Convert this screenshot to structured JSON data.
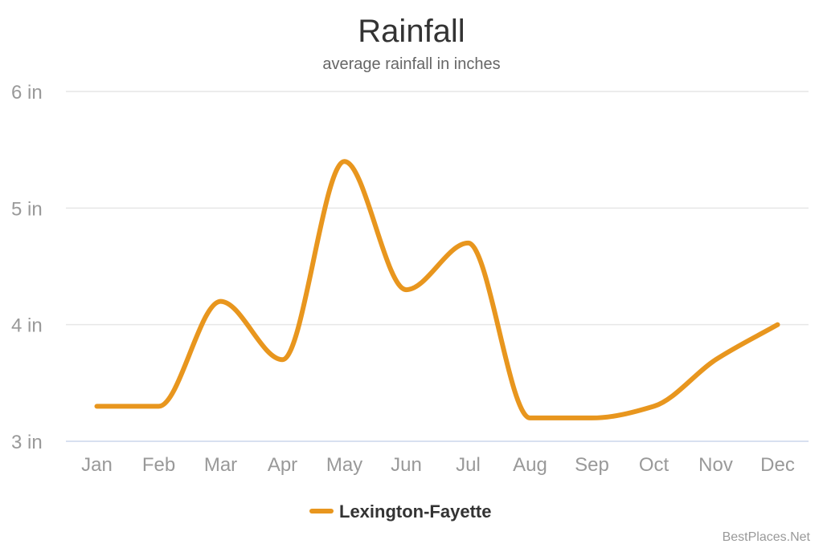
{
  "chart_data": {
    "type": "line",
    "title": "Rainfall",
    "subtitle": "average rainfall in inches",
    "xlabel": "",
    "ylabel": "",
    "categories": [
      "Jan",
      "Feb",
      "Mar",
      "Apr",
      "May",
      "Jun",
      "Jul",
      "Aug",
      "Sep",
      "Oct",
      "Nov",
      "Dec"
    ],
    "series": [
      {
        "name": "Lexington-Fayette",
        "color": "#E8961E",
        "values": [
          3.3,
          3.3,
          4.2,
          3.7,
          5.4,
          4.3,
          4.7,
          3.2,
          3.2,
          3.3,
          3.7,
          4.0
        ]
      }
    ],
    "ylim": [
      3,
      6
    ],
    "yticks": [
      {
        "value": 3,
        "label": "3 in"
      },
      {
        "value": 4,
        "label": "4 in"
      },
      {
        "value": 5,
        "label": "5 in"
      },
      {
        "value": 6,
        "label": "6 in"
      }
    ],
    "grid": true,
    "legend_position": "bottom-center",
    "curve": "smooth",
    "grid_color": "#E6E6E6",
    "axis_color": "#CCD6EB"
  },
  "credit": "BestPlaces.Net"
}
